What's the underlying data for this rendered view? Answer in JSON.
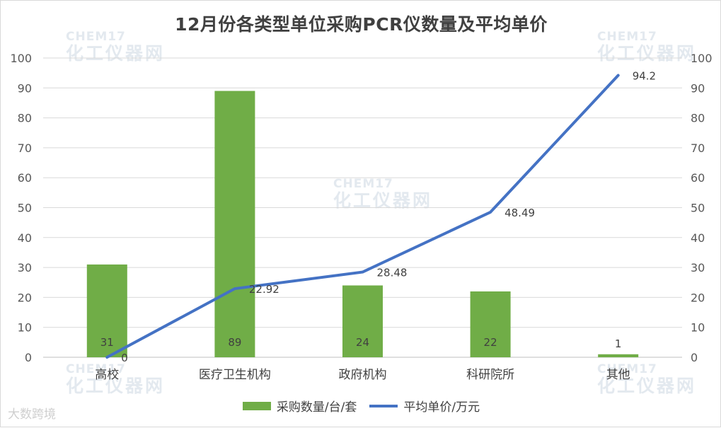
{
  "chart_data": {
    "type": "bar+line",
    "title": "12月份各类型单位采购PCR仪数量及平均单价",
    "categories": [
      "高校",
      "医疗卫生机构",
      "政府机构",
      "科研院所",
      "其他"
    ],
    "series": [
      {
        "name": "采购数量/台/套",
        "type": "bar",
        "axis": "left",
        "values": [
          31,
          89,
          24,
          22,
          1
        ],
        "color": "#70ad47"
      },
      {
        "name": "平均单价/万元",
        "type": "line",
        "axis": "right",
        "values": [
          0,
          22.92,
          28.48,
          48.49,
          94.2
        ],
        "color": "#4472c4"
      }
    ],
    "bar_labels": [
      "31",
      "89",
      "24",
      "22",
      "1"
    ],
    "line_labels": [
      "0",
      "22.92",
      "28.48",
      "48.49",
      "94.2"
    ],
    "ylim_left": [
      0,
      100
    ],
    "ylim_right": [
      0,
      100
    ],
    "yticks": [
      0,
      10,
      20,
      30,
      40,
      50,
      60,
      70,
      80,
      90,
      100
    ],
    "grid": true,
    "legend_position": "bottom"
  },
  "watermark": {
    "en": "CHEM17",
    "zh": "化工仪器网"
  },
  "source_mark": "大数跨境"
}
